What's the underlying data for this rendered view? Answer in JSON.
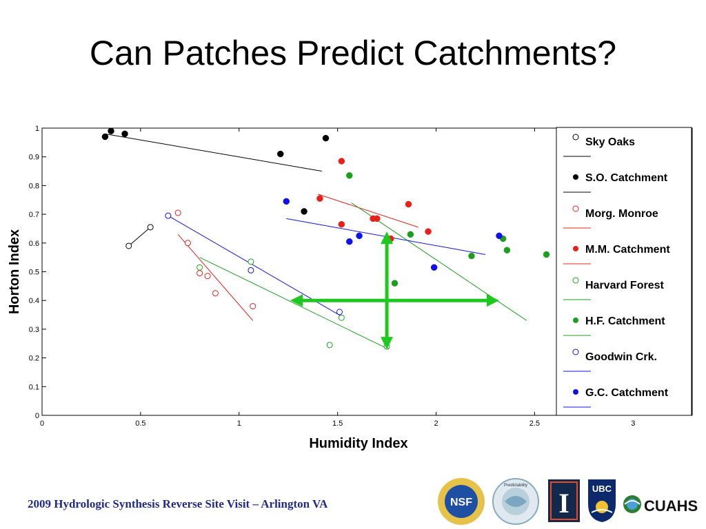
{
  "title": "Can Patches Predict Catchments?",
  "footer": "2009 Hydrologic Synthesis Reverse Site Visit – Arlington VA",
  "logos": [
    {
      "name": "nsf-logo",
      "text": "NSF"
    },
    {
      "name": "predictability-logo",
      "text": "Predictability"
    },
    {
      "name": "illinois-logo",
      "text": "I"
    },
    {
      "name": "ubc-logo",
      "text": "UBC"
    },
    {
      "name": "cuahsi-logo",
      "text": "CUAHSI"
    }
  ],
  "chart_data": {
    "type": "scatter",
    "xlabel": "Humidity Index",
    "ylabel": "Horton Index",
    "xlim": [
      0,
      3.3
    ],
    "ylim": [
      0,
      1
    ],
    "xticks": [
      0,
      0.5,
      1,
      1.5,
      2,
      2.5,
      3
    ],
    "xtick_labels": [
      "0",
      "0.5",
      "1",
      "1.5",
      "2",
      "2.5",
      "3"
    ],
    "yticks": [
      0,
      0.1,
      0.2,
      0.3,
      0.4,
      0.5,
      0.6,
      0.7,
      0.8,
      0.9,
      1
    ],
    "ytick_labels": [
      "0",
      "0.1",
      "0.2",
      "0.3",
      "0.4",
      "0.5",
      "0.6",
      "0.7",
      "0.8",
      "0.9",
      "1"
    ],
    "legend_position": "right",
    "series": [
      {
        "name": "Sky Oaks",
        "color": "#000000",
        "marker": "open",
        "points": [
          [
            0.44,
            0.59
          ],
          [
            0.55,
            0.655
          ]
        ],
        "fit": [
          [
            0.44,
            0.59
          ],
          [
            0.55,
            0.655
          ]
        ]
      },
      {
        "name": "S.O. Catchment",
        "color": "#000000",
        "marker": "filled",
        "points": [
          [
            0.32,
            0.97
          ],
          [
            0.35,
            0.99
          ],
          [
            0.42,
            0.98
          ],
          [
            1.21,
            0.91
          ],
          [
            1.44,
            0.965
          ],
          [
            1.33,
            0.71
          ]
        ],
        "fit": [
          [
            0.32,
            0.98
          ],
          [
            1.42,
            0.85
          ]
        ]
      },
      {
        "name": "Morg. Monroe",
        "color": "#e8201a",
        "marker": "open",
        "points": [
          [
            0.69,
            0.705
          ],
          [
            0.74,
            0.6
          ],
          [
            0.8,
            0.495
          ],
          [
            0.84,
            0.485
          ],
          [
            0.88,
            0.425
          ],
          [
            1.07,
            0.38
          ]
        ],
        "fit": [
          [
            0.69,
            0.63
          ],
          [
            1.07,
            0.33
          ]
        ]
      },
      {
        "name": "M.M. Catchment",
        "color": "#e8201a",
        "marker": "filled",
        "points": [
          [
            1.41,
            0.755
          ],
          [
            1.52,
            0.885
          ],
          [
            1.52,
            0.665
          ],
          [
            1.68,
            0.685
          ],
          [
            1.7,
            0.685
          ],
          [
            1.77,
            0.615
          ],
          [
            1.86,
            0.735
          ],
          [
            1.96,
            0.64
          ]
        ],
        "fit": [
          [
            1.4,
            0.77
          ],
          [
            1.91,
            0.655
          ]
        ]
      },
      {
        "name": "Harvard Forest",
        "color": "#1e9e1e",
        "marker": "open",
        "points": [
          [
            0.8,
            0.515
          ],
          [
            1.06,
            0.535
          ],
          [
            1.52,
            0.34
          ],
          [
            1.46,
            0.245
          ],
          [
            1.75,
            0.24
          ]
        ],
        "fit": [
          [
            0.8,
            0.55
          ],
          [
            1.76,
            0.23
          ]
        ]
      },
      {
        "name": "H.F. Catchment",
        "color": "#1e9e1e",
        "marker": "filled",
        "points": [
          [
            1.56,
            0.835
          ],
          [
            1.79,
            0.46
          ],
          [
            1.87,
            0.63
          ],
          [
            2.18,
            0.555
          ],
          [
            2.34,
            0.615
          ],
          [
            2.36,
            0.575
          ],
          [
            2.56,
            0.56
          ]
        ],
        "fit": [
          [
            1.57,
            0.74
          ],
          [
            2.46,
            0.33
          ]
        ]
      },
      {
        "name": "Goodwin Crk.",
        "color": "#1010e8",
        "marker": "open",
        "points": [
          [
            0.64,
            0.695
          ],
          [
            1.06,
            0.505
          ],
          [
            1.51,
            0.36
          ]
        ],
        "fit": [
          [
            0.64,
            0.695
          ],
          [
            1.52,
            0.345
          ]
        ]
      },
      {
        "name": "G.C. Catchment",
        "color": "#1010e8",
        "marker": "filled",
        "points": [
          [
            1.24,
            0.745
          ],
          [
            1.56,
            0.605
          ],
          [
            1.61,
            0.625
          ],
          [
            1.99,
            0.515
          ],
          [
            2.32,
            0.625
          ]
        ],
        "fit": [
          [
            1.24,
            0.685
          ],
          [
            2.25,
            0.56
          ]
        ]
      }
    ],
    "annotation": {
      "type": "crosshair-arrows",
      "color": "#1ec81e",
      "center": [
        1.75,
        0.4
      ],
      "x_extent": [
        1.26,
        2.32
      ],
      "y_extent": [
        0.23,
        0.64
      ]
    }
  }
}
